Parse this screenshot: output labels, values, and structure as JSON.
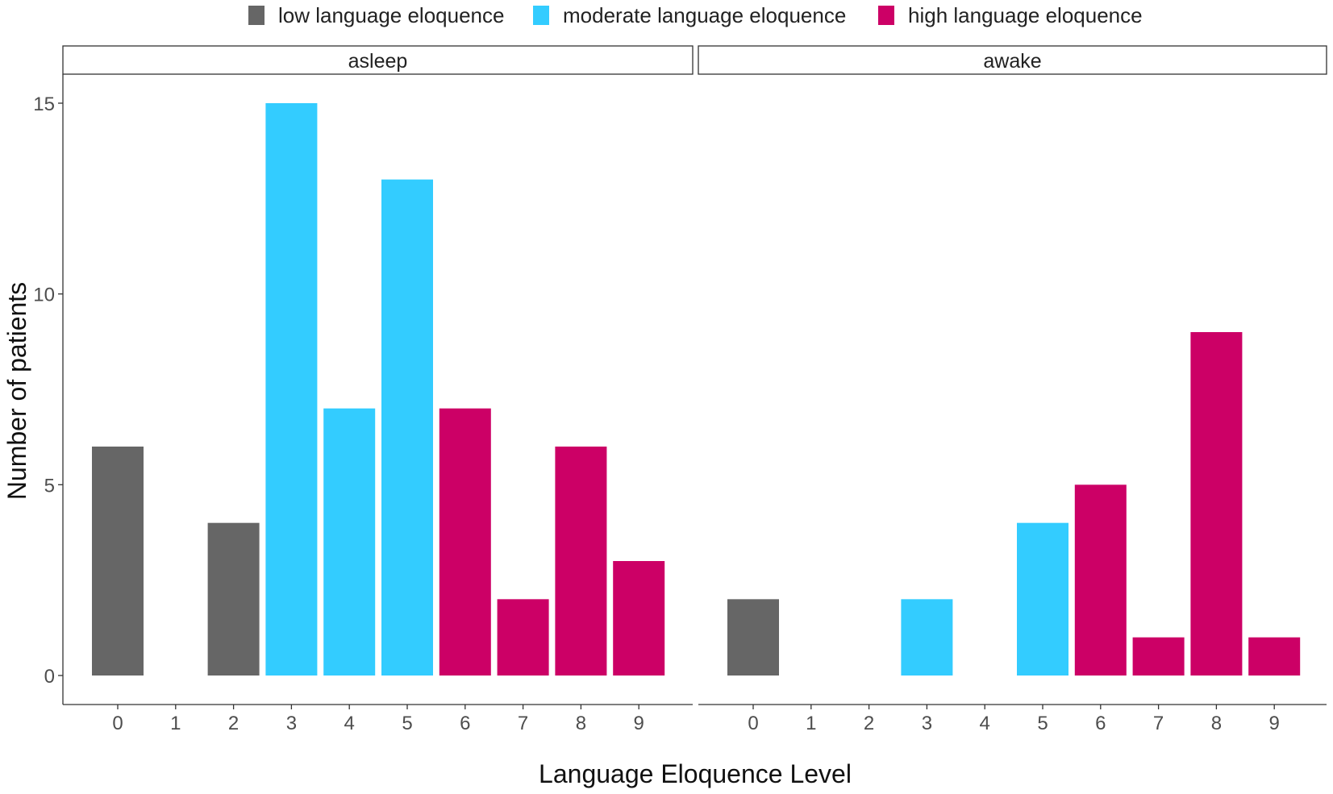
{
  "chart_data": {
    "type": "bar",
    "xlabel": "Language Eloquence Level",
    "ylabel": "Number of patients",
    "ylim": [
      0,
      15
    ],
    "y_ticks": [
      0,
      5,
      10,
      15
    ],
    "x_ticks": [
      "0",
      "1",
      "2",
      "3",
      "4",
      "5",
      "6",
      "7",
      "8",
      "9"
    ],
    "grid": false,
    "legend_position": "top",
    "legend": [
      {
        "name": "low language eloquence",
        "color": "#666666"
      },
      {
        "name": "moderate language eloquence",
        "color": "#33CCFF"
      },
      {
        "name": "high language eloquence",
        "color": "#CC0066"
      }
    ],
    "facets": [
      {
        "title": "asleep",
        "bars": [
          {
            "level": 0,
            "value": 6,
            "group": "low language eloquence"
          },
          {
            "level": 2,
            "value": 4,
            "group": "low language eloquence"
          },
          {
            "level": 3,
            "value": 15,
            "group": "moderate language eloquence"
          },
          {
            "level": 4,
            "value": 7,
            "group": "moderate language eloquence"
          },
          {
            "level": 5,
            "value": 13,
            "group": "moderate language eloquence"
          },
          {
            "level": 6,
            "value": 7,
            "group": "high language eloquence"
          },
          {
            "level": 7,
            "value": 2,
            "group": "high language eloquence"
          },
          {
            "level": 8,
            "value": 6,
            "group": "high language eloquence"
          },
          {
            "level": 9,
            "value": 3,
            "group": "high language eloquence"
          }
        ]
      },
      {
        "title": "awake",
        "bars": [
          {
            "level": 0,
            "value": 2,
            "group": "low language eloquence"
          },
          {
            "level": 3,
            "value": 2,
            "group": "moderate language eloquence"
          },
          {
            "level": 5,
            "value": 4,
            "group": "moderate language eloquence"
          },
          {
            "level": 6,
            "value": 5,
            "group": "high language eloquence"
          },
          {
            "level": 7,
            "value": 1,
            "group": "high language eloquence"
          },
          {
            "level": 8,
            "value": 9,
            "group": "high language eloquence"
          },
          {
            "level": 9,
            "value": 1,
            "group": "high language eloquence"
          }
        ]
      }
    ]
  }
}
